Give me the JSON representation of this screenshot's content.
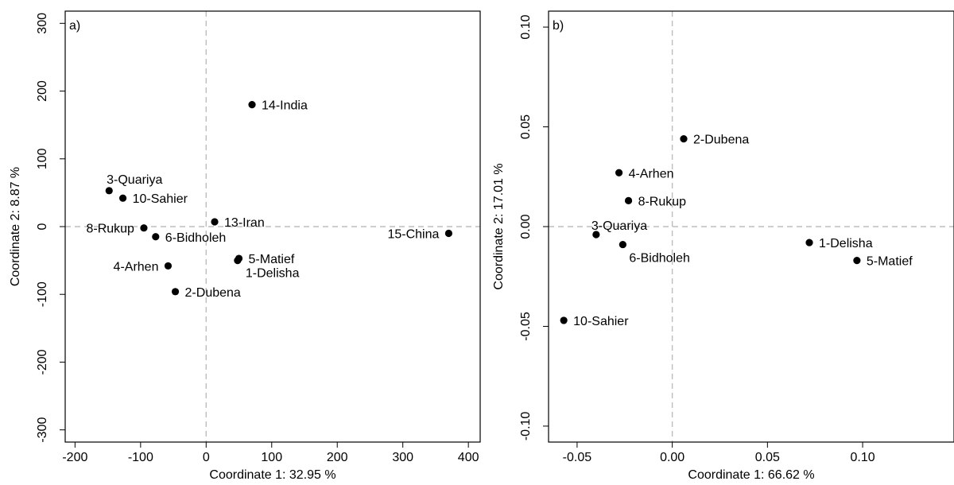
{
  "chart_data": [
    {
      "type": "scatter",
      "panel_label": "a)",
      "xlabel": "Coordinate 1: 32.95 %",
      "ylabel": "Coordinate 2: 8.87 %",
      "xlim": [
        -215,
        418
      ],
      "ylim": [
        -318,
        318
      ],
      "xticks": [
        -200,
        -100,
        0,
        100,
        200,
        300,
        400
      ],
      "xtick_labels": [
        "-200",
        "-100",
        "0",
        "100",
        "200",
        "300",
        "400"
      ],
      "yticks": [
        -300,
        -200,
        -100,
        0,
        100,
        200,
        300
      ],
      "ytick_labels": [
        "-300",
        "-200",
        "-100",
        "0",
        "100",
        "200",
        "300"
      ],
      "grid": false,
      "reference_lines": {
        "x": 0,
        "y": 0
      },
      "points": [
        {
          "label": "14-India",
          "x": 70,
          "y": 180,
          "label_pos": "right"
        },
        {
          "label": "3-Quariya",
          "x": -148,
          "y": 53,
          "label_pos": "above"
        },
        {
          "label": "10-Sahier",
          "x": -127,
          "y": 42,
          "label_pos": "right"
        },
        {
          "label": "13-Iran",
          "x": 13,
          "y": 7,
          "label_pos": "right"
        },
        {
          "label": "8-Rukup",
          "x": -95,
          "y": -2,
          "label_pos": "left"
        },
        {
          "label": "6-Bidholeh",
          "x": -77,
          "y": -15,
          "label_pos": "right"
        },
        {
          "label": "15-China",
          "x": 370,
          "y": -10,
          "label_pos": "left"
        },
        {
          "label": "5-Matief",
          "x": 50,
          "y": -47,
          "label_pos": "right"
        },
        {
          "label": "1-Delisha",
          "x": 48,
          "y": -50,
          "label_pos": "below-right"
        },
        {
          "label": "4-Arhen",
          "x": -58,
          "y": -58,
          "label_pos": "left"
        },
        {
          "label": "2-Dubena",
          "x": -47,
          "y": -96,
          "label_pos": "right"
        }
      ]
    },
    {
      "type": "scatter",
      "panel_label": "b)",
      "xlabel": "Coordinate 1: 66.62 %",
      "ylabel": "Coordinate 2: 17.01 %",
      "xlim": [
        -0.065,
        0.148
      ],
      "ylim": [
        -0.108,
        0.108
      ],
      "xticks": [
        -0.05,
        0.0,
        0.05,
        0.1
      ],
      "xtick_labels": [
        "-0.05",
        "0.00",
        "0.05",
        "0.10"
      ],
      "yticks": [
        -0.1,
        -0.05,
        0.0,
        0.05,
        0.1
      ],
      "ytick_labels": [
        "-0.10",
        "-0.05",
        "0.00",
        "0.05",
        "0.10"
      ],
      "grid": false,
      "reference_lines": {
        "x": 0,
        "y": 0
      },
      "points": [
        {
          "label": "2-Dubena",
          "x": 0.006,
          "y": 0.044,
          "label_pos": "right"
        },
        {
          "label": "4-Arhen",
          "x": -0.028,
          "y": 0.027,
          "label_pos": "right"
        },
        {
          "label": "8-Rukup",
          "x": -0.023,
          "y": 0.013,
          "label_pos": "right"
        },
        {
          "label": "3-Quariya",
          "x": -0.04,
          "y": -0.004,
          "label_pos": "above-right"
        },
        {
          "label": "6-Bidholeh",
          "x": -0.026,
          "y": -0.009,
          "label_pos": "below-right"
        },
        {
          "label": "1-Delisha",
          "x": 0.072,
          "y": -0.008,
          "label_pos": "right"
        },
        {
          "label": "5-Matief",
          "x": 0.097,
          "y": -0.017,
          "label_pos": "right"
        },
        {
          "label": "10-Sahier",
          "x": -0.057,
          "y": -0.047,
          "label_pos": "right"
        }
      ]
    }
  ]
}
